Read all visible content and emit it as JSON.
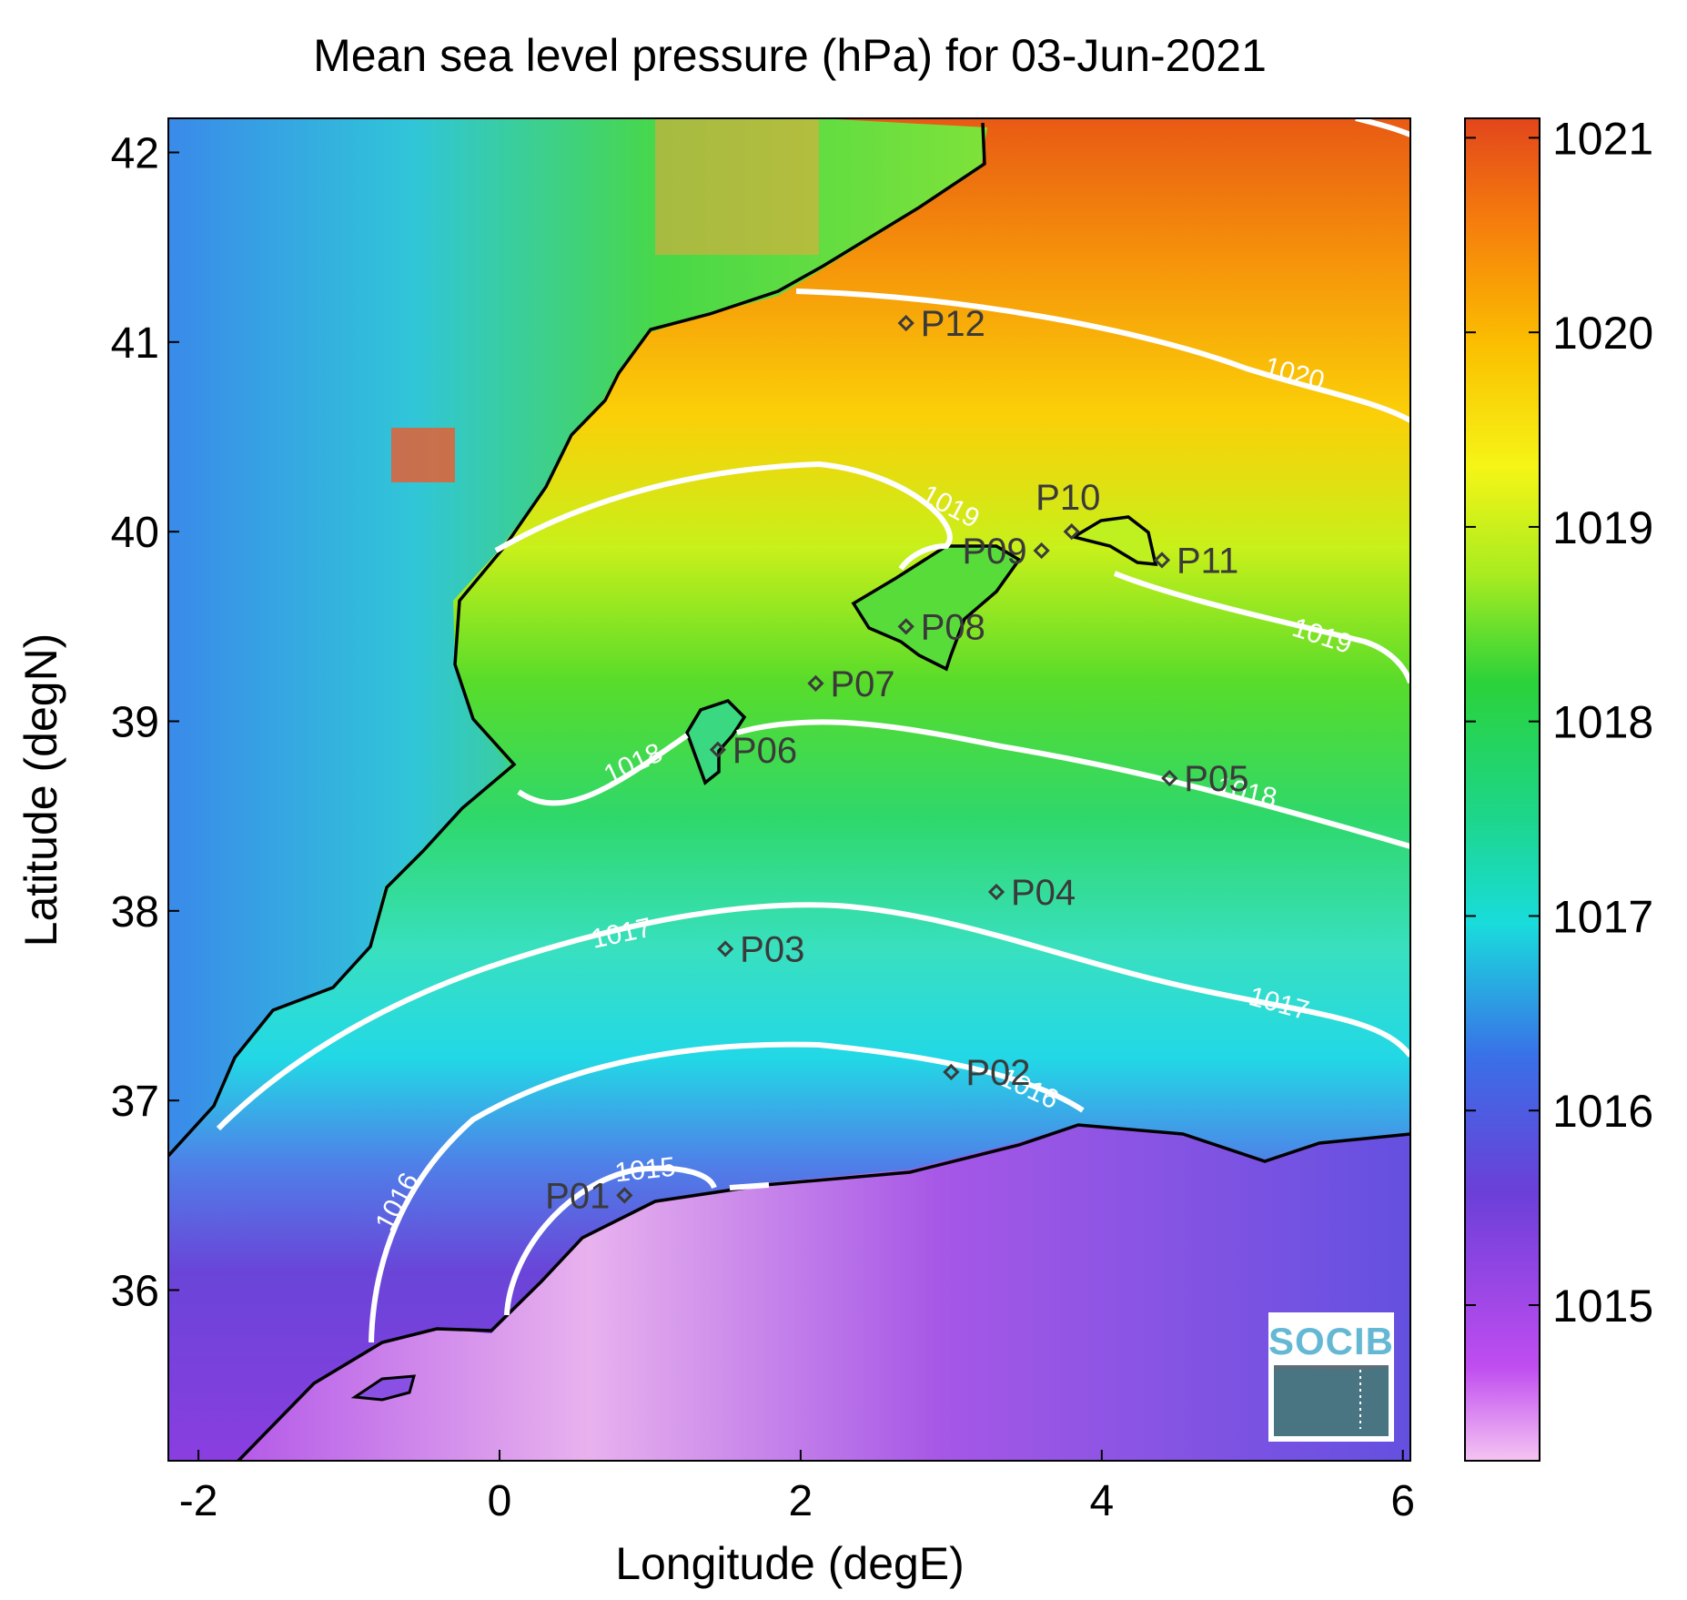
{
  "title": "Mean sea level pressure (hPa) for 03-Jun-2021",
  "xlabel": "Longitude (degE)",
  "ylabel": "Latitude (degN)",
  "x_ticks": [
    "-2",
    "0",
    "2",
    "4",
    "6"
  ],
  "y_ticks": [
    "42",
    "41",
    "40",
    "39",
    "38",
    "37",
    "36"
  ],
  "colorbar": {
    "ticks": [
      "1021",
      "1020",
      "1019",
      "1018",
      "1017",
      "1016",
      "1015"
    ],
    "colors": [
      "#f5c4f2",
      "#c04df0",
      "#6b3fd8",
      "#3a6fe8",
      "#19dcdc",
      "#1dd68a",
      "#2bd23a",
      "#a8ec20",
      "#f5f516",
      "#fbc000",
      "#f67f0c",
      "#e2461c"
    ]
  },
  "contours": [
    {
      "value": "1020",
      "label": "1020"
    },
    {
      "value": "1019",
      "label": "1019"
    },
    {
      "value": "1018",
      "label": "1018"
    },
    {
      "value": "1017",
      "label": "1017"
    },
    {
      "value": "1016",
      "label": "1016"
    },
    {
      "value": "1015",
      "label": "1015"
    }
  ],
  "stations": [
    {
      "id": "P01",
      "lon": 0.83,
      "lat": 36.5
    },
    {
      "id": "P02",
      "lon": 3.0,
      "lat": 37.15
    },
    {
      "id": "P03",
      "lon": 1.5,
      "lat": 37.8
    },
    {
      "id": "P04",
      "lon": 3.3,
      "lat": 38.1
    },
    {
      "id": "P05",
      "lon": 4.45,
      "lat": 38.7
    },
    {
      "id": "P06",
      "lon": 1.45,
      "lat": 38.85
    },
    {
      "id": "P07",
      "lon": 2.1,
      "lat": 39.2
    },
    {
      "id": "P08",
      "lon": 2.7,
      "lat": 39.5
    },
    {
      "id": "P09",
      "lon": 3.6,
      "lat": 39.9
    },
    {
      "id": "P10",
      "lon": 3.8,
      "lat": 40.0
    },
    {
      "id": "P11",
      "lon": 4.4,
      "lat": 39.85
    },
    {
      "id": "P12",
      "lon": 2.7,
      "lat": 41.1
    }
  ],
  "logo": {
    "text": "SOCIB"
  },
  "chart_data": {
    "type": "heatmap",
    "title": "Mean sea level pressure (hPa) for 03-Jun-2021",
    "xlabel": "Longitude (degE)",
    "ylabel": "Latitude (degN)",
    "xlim": [
      -2.2,
      6.05
    ],
    "ylim": [
      35.1,
      42.18
    ],
    "color_range": [
      1014.2,
      1021.1
    ],
    "contour_levels": [
      1015,
      1016,
      1017,
      1018,
      1019,
      1020
    ],
    "x_ticks": [
      -2,
      0,
      2,
      4,
      6
    ],
    "y_ticks": [
      36,
      37,
      38,
      39,
      40,
      41,
      42
    ],
    "colorbar_ticks": [
      1015,
      1016,
      1017,
      1018,
      1019,
      1020,
      1021
    ],
    "grid": false
  }
}
